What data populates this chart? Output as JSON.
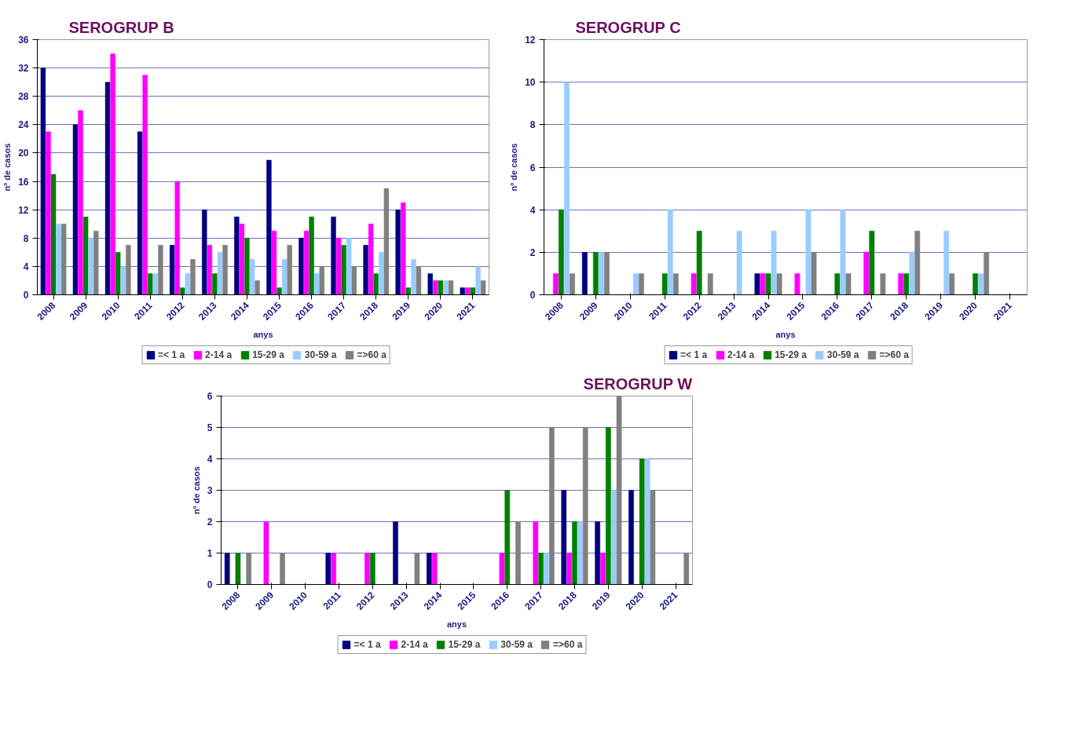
{
  "chart_data": [
    {
      "type": "bar",
      "title": "SEROGRUP B",
      "xlabel": "anys",
      "ylabel": "nº de casos",
      "categories": [
        "2008",
        "2009",
        "2010",
        "2011",
        "2012",
        "2013",
        "2014",
        "2015",
        "2016",
        "2017",
        "2018",
        "2019",
        "2020",
        "2021"
      ],
      "ylim": [
        0,
        36
      ],
      "yticks": [
        0,
        4,
        8,
        12,
        16,
        20,
        24,
        28,
        32,
        36
      ],
      "grid": "y",
      "legend": "bottom",
      "series": [
        {
          "name": "=< 1 a",
          "color": "#000080",
          "values": [
            32,
            24,
            30,
            23,
            7,
            12,
            11,
            19,
            8,
            11,
            7,
            12,
            3,
            1
          ]
        },
        {
          "name": "2-14 a",
          "color": "#ff00ff",
          "values": [
            23,
            26,
            34,
            31,
            16,
            7,
            10,
            9,
            9,
            8,
            10,
            13,
            2,
            1
          ]
        },
        {
          "name": "15-29 a",
          "color": "#008000",
          "values": [
            17,
            11,
            6,
            3,
            1,
            3,
            8,
            1,
            11,
            7,
            3,
            1,
            2,
            1
          ]
        },
        {
          "name": "30-59 a",
          "color": "#99ccff",
          "values": [
            10,
            8,
            4,
            3,
            3,
            6,
            5,
            5,
            3,
            8,
            6,
            5,
            2,
            4
          ]
        },
        {
          "name": "=>60 a",
          "color": "#808080",
          "values": [
            10,
            9,
            7,
            7,
            5,
            7,
            2,
            7,
            4,
            4,
            15,
            4,
            2,
            2
          ]
        }
      ]
    },
    {
      "type": "bar",
      "title": "SEROGRUP C",
      "xlabel": "anys",
      "ylabel": "nº de casos",
      "categories": [
        "2008",
        "2009",
        "2010",
        "2011",
        "2012",
        "2013",
        "2014",
        "2015",
        "2016",
        "2017",
        "2018",
        "2019",
        "2020",
        "2021"
      ],
      "ylim": [
        0,
        12
      ],
      "yticks": [
        0,
        2,
        4,
        6,
        8,
        10,
        12
      ],
      "grid": "y",
      "legend": "bottom",
      "series": [
        {
          "name": "=< 1 a",
          "color": "#000080",
          "values": [
            0,
            2,
            0,
            0,
            0,
            0,
            1,
            0,
            0,
            0,
            0,
            0,
            0,
            0
          ]
        },
        {
          "name": "2-14 a",
          "color": "#ff00ff",
          "values": [
            1,
            0,
            0,
            0,
            1,
            0,
            1,
            1,
            0,
            2,
            1,
            0,
            0,
            0
          ]
        },
        {
          "name": "15-29 a",
          "color": "#008000",
          "values": [
            4,
            2,
            0,
            1,
            3,
            0,
            1,
            0,
            1,
            3,
            1,
            0,
            1,
            0
          ]
        },
        {
          "name": "30-59 a",
          "color": "#99ccff",
          "values": [
            10,
            2,
            1,
            4,
            0,
            3,
            3,
            4,
            4,
            0,
            2,
            3,
            1,
            0
          ]
        },
        {
          "name": "=>60 a",
          "color": "#808080",
          "values": [
            1,
            2,
            1,
            1,
            1,
            0,
            1,
            2,
            1,
            1,
            3,
            1,
            2,
            0
          ]
        }
      ]
    },
    {
      "type": "bar",
      "title": "SEROGRUP W",
      "xlabel": "anys",
      "ylabel": "nº de casos",
      "categories": [
        "2008",
        "2009",
        "2010",
        "2011",
        "2012",
        "2013",
        "2014",
        "2015",
        "2016",
        "2017",
        "2018",
        "2019",
        "2020",
        "2021"
      ],
      "ylim": [
        0,
        6
      ],
      "yticks": [
        0,
        1,
        2,
        3,
        4,
        5,
        6
      ],
      "grid": "y",
      "legend": "bottom",
      "series": [
        {
          "name": "=< 1 a",
          "color": "#000080",
          "values": [
            1,
            0,
            0,
            1,
            0,
            2,
            1,
            0,
            0,
            0,
            3,
            2,
            3,
            0
          ]
        },
        {
          "name": "2-14 a",
          "color": "#ff00ff",
          "values": [
            0,
            2,
            0,
            1,
            1,
            0,
            1,
            0,
            1,
            2,
            1,
            1,
            0,
            0
          ]
        },
        {
          "name": "15-29 a",
          "color": "#008000",
          "values": [
            1,
            0,
            0,
            0,
            1,
            0,
            0,
            0,
            3,
            1,
            2,
            5,
            4,
            0
          ]
        },
        {
          "name": "30-59 a",
          "color": "#99ccff",
          "values": [
            0,
            0,
            0,
            0,
            0,
            0,
            0,
            0,
            0,
            1,
            2,
            3,
            4,
            0
          ]
        },
        {
          "name": "=>60 a",
          "color": "#808080",
          "values": [
            1,
            1,
            0,
            0,
            0,
            1,
            0,
            0,
            2,
            5,
            5,
            6,
            3,
            1
          ]
        }
      ]
    }
  ]
}
